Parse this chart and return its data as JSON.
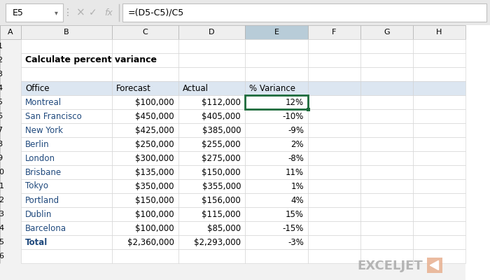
{
  "title": "Calculate percent variance",
  "formula_bar_cell": "E5",
  "formula_bar_formula": "=(D5-C5)/C5",
  "col_headers": [
    "A",
    "B",
    "C",
    "D",
    "E",
    "F",
    "G",
    "H"
  ],
  "table_headers": [
    "Office",
    "Forecast",
    "Actual",
    "% Variance"
  ],
  "rows": [
    [
      "Montreal",
      "$100,000",
      "$112,000",
      "12%"
    ],
    [
      "San Francisco",
      "$450,000",
      "$405,000",
      "-10%"
    ],
    [
      "New York",
      "$425,000",
      "$385,000",
      "-9%"
    ],
    [
      "Berlin",
      "$250,000",
      "$255,000",
      "2%"
    ],
    [
      "London",
      "$300,000",
      "$275,000",
      "-8%"
    ],
    [
      "Brisbane",
      "$135,000",
      "$150,000",
      "11%"
    ],
    [
      "Tokyo",
      "$350,000",
      "$355,000",
      "1%"
    ],
    [
      "Portland",
      "$150,000",
      "$156,000",
      "4%"
    ],
    [
      "Dublin",
      "$100,000",
      "$115,000",
      "15%"
    ],
    [
      "Barcelona",
      "$100,000",
      "$85,000",
      "-15%"
    ],
    [
      "Total",
      "$2,360,000",
      "$2,293,000",
      "-3%"
    ]
  ],
  "colors": {
    "background": "#f2f2f2",
    "sheet_bg": "#ffffff",
    "formula_bar_bg": "#e8e8e8",
    "col_header_selected_bg": "#b8ccd8",
    "col_header_bg": "#efefef",
    "row_header_bg": "#efefef",
    "row_header_selected_bg": "#dde8f0",
    "table_header_bg": "#dce6f1",
    "cell_border": "#d0d0d0",
    "header_border": "#b0b0b0",
    "selected_cell_border": "#1e6b3c",
    "office_col_color": "#1f497d",
    "total_row_color": "#1f497d",
    "exceljet_orange": "#e8b090",
    "exceljet_text": "#aaaaaa"
  },
  "figsize": [
    7.0,
    4.0
  ],
  "dpi": 100
}
